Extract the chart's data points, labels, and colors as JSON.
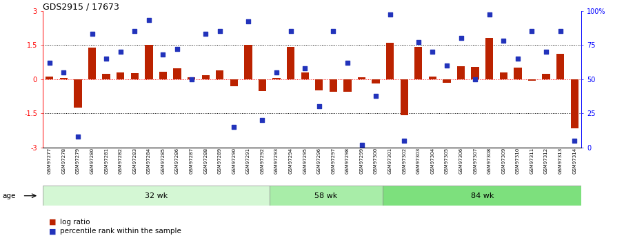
{
  "title": "GDS2915 / 17673",
  "samples": [
    "GSM97277",
    "GSM97278",
    "GSM97279",
    "GSM97280",
    "GSM97281",
    "GSM97282",
    "GSM97283",
    "GSM97284",
    "GSM97285",
    "GSM97286",
    "GSM97287",
    "GSM97288",
    "GSM97289",
    "GSM97290",
    "GSM97291",
    "GSM97292",
    "GSM97293",
    "GSM97294",
    "GSM97295",
    "GSM97296",
    "GSM97297",
    "GSM97298",
    "GSM97299",
    "GSM97300",
    "GSM97301",
    "GSM97302",
    "GSM97303",
    "GSM97304",
    "GSM97305",
    "GSM97306",
    "GSM97307",
    "GSM97308",
    "GSM97309",
    "GSM97310",
    "GSM97311",
    "GSM97312",
    "GSM97313",
    "GSM97314"
  ],
  "log_ratio": [
    0.12,
    0.05,
    -1.25,
    1.38,
    0.22,
    0.28,
    0.25,
    1.5,
    0.32,
    0.48,
    0.08,
    0.18,
    0.38,
    -0.32,
    1.5,
    -0.52,
    0.05,
    1.42,
    0.3,
    -0.48,
    -0.55,
    -0.55,
    0.08,
    -0.18,
    1.58,
    -1.58,
    1.42,
    0.12,
    -0.15,
    0.58,
    0.55,
    1.8,
    0.3,
    0.5,
    -0.08,
    0.22,
    1.12,
    -2.15
  ],
  "percentile": [
    62,
    55,
    8,
    83,
    65,
    70,
    85,
    93,
    68,
    72,
    50,
    83,
    85,
    15,
    92,
    20,
    55,
    85,
    58,
    30,
    85,
    62,
    2,
    38,
    97,
    5,
    77,
    70,
    60,
    80,
    50,
    97,
    78,
    65,
    85,
    70,
    85,
    5
  ],
  "groups": [
    {
      "label": "32 wk",
      "start": 0,
      "end": 16,
      "color": "#d4f7d4"
    },
    {
      "label": "58 wk",
      "start": 16,
      "end": 24,
      "color": "#a8eda8"
    },
    {
      "label": "84 wk",
      "start": 24,
      "end": 38,
      "color": "#7de07d"
    }
  ],
  "bar_color": "#bb2200",
  "dot_color": "#2233bb",
  "legend_bar": "log ratio",
  "legend_dot": "percentile rank within the sample",
  "age_label": "age"
}
